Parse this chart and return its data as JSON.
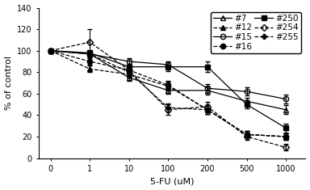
{
  "x_labels": [
    0,
    1,
    10,
    100,
    200,
    500,
    1000
  ],
  "x_positions": [
    0,
    1,
    2,
    3,
    4,
    5,
    6
  ],
  "series": {
    "#7": {
      "y": [
        100,
        97,
        75,
        63,
        63,
        53,
        45
      ],
      "yerr": [
        1,
        2,
        3,
        3,
        4,
        3,
        4
      ],
      "linestyle": "-",
      "marker": "^",
      "fillstyle": "none",
      "color": "black"
    },
    "#15": {
      "y": [
        100,
        97,
        90,
        87,
        65,
        62,
        55
      ],
      "yerr": [
        1,
        2,
        3,
        3,
        4,
        4,
        4
      ],
      "linestyle": "-",
      "marker": "o",
      "fillstyle": "none",
      "color": "black"
    },
    "#250": {
      "y": [
        100,
        98,
        85,
        85,
        85,
        50,
        28
      ],
      "yerr": [
        1,
        2,
        3,
        4,
        5,
        4,
        4
      ],
      "linestyle": "-",
      "marker": "s",
      "fillstyle": "full",
      "color": "black"
    },
    "#12": {
      "y": [
        100,
        83,
        78,
        67,
        45,
        22,
        20
      ],
      "yerr": [
        1,
        3,
        3,
        4,
        4,
        3,
        3
      ],
      "linestyle": "--",
      "marker": "^",
      "fillstyle": "full",
      "color": "black"
    },
    "#16": {
      "y": [
        100,
        90,
        82,
        68,
        45,
        22,
        20
      ],
      "yerr": [
        1,
        3,
        3,
        4,
        4,
        3,
        3
      ],
      "linestyle": "--",
      "marker": "o",
      "fillstyle": "full",
      "color": "black"
    },
    "#254": {
      "y": [
        100,
        108,
        82,
        45,
        48,
        20,
        10
      ],
      "yerr": [
        1,
        12,
        4,
        5,
        4,
        3,
        3
      ],
      "linestyle": "--",
      "marker": "D",
      "fillstyle": "none",
      "color": "black"
    },
    "#255": {
      "y": [
        100,
        97,
        80,
        47,
        45,
        22,
        20
      ],
      "yerr": [
        1,
        3,
        3,
        4,
        4,
        3,
        3
      ],
      "linestyle": "--",
      "marker": "P",
      "fillstyle": "full",
      "color": "black"
    }
  },
  "legend_col1": [
    "#7",
    "#15",
    "#250",
    "#255"
  ],
  "legend_col2": [
    "#12",
    "#16",
    "#254"
  ],
  "ylabel": "% of control",
  "xlabel": "5-FU (uM)",
  "ylim": [
    0,
    140
  ],
  "yticks": [
    0,
    20,
    40,
    60,
    80,
    100,
    120,
    140
  ],
  "axis_fontsize": 8,
  "legend_fontsize": 7.5
}
